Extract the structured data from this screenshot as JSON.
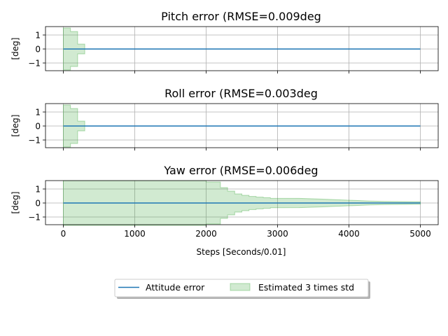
{
  "chart_data": [
    {
      "type": "line",
      "title": "Pitch error (RMSE=0.009deg",
      "ylabel": "[deg]",
      "xlabel": "",
      "xlim": [
        -250,
        5250
      ],
      "ylim": [
        -1.55,
        1.6
      ],
      "xticks": [
        0,
        1000,
        2000,
        3000,
        4000,
        5000
      ],
      "yticks": [
        -1,
        0,
        1
      ],
      "grid": true,
      "series": [
        {
          "name": "Attitude error",
          "x": [
            0,
            5000
          ],
          "y": [
            0.0,
            0.0
          ]
        }
      ],
      "band": {
        "name": "Estimated 3 times std",
        "x": [
          0,
          100,
          100,
          200,
          200,
          300
        ],
        "y": [
          1.5,
          1.5,
          1.25,
          1.25,
          0.35,
          0.35
        ]
      }
    },
    {
      "type": "line",
      "title": "Roll error (RMSE=0.003deg",
      "ylabel": "[deg]",
      "xlabel": "",
      "xlim": [
        -250,
        5250
      ],
      "ylim": [
        -1.55,
        1.6
      ],
      "xticks": [
        0,
        1000,
        2000,
        3000,
        4000,
        5000
      ],
      "yticks": [
        -1,
        0,
        1
      ],
      "grid": true,
      "series": [
        {
          "name": "Attitude error",
          "x": [
            0,
            5000
          ],
          "y": [
            0.0,
            0.0
          ]
        }
      ],
      "band": {
        "name": "Estimated 3 times std",
        "x": [
          0,
          100,
          100,
          200,
          200,
          300
        ],
        "y": [
          1.5,
          1.5,
          1.25,
          1.25,
          0.35,
          0.35
        ]
      }
    },
    {
      "type": "line",
      "title": "Yaw error (RMSE=0.006deg",
      "ylabel": "[deg]",
      "xlabel": "Steps [Seconds/0.01]",
      "xlim": [
        -250,
        5250
      ],
      "ylim": [
        -1.55,
        1.6
      ],
      "xticks": [
        0,
        1000,
        2000,
        3000,
        4000,
        5000
      ],
      "yticks": [
        -1,
        0,
        1
      ],
      "grid": true,
      "series": [
        {
          "name": "Attitude error",
          "x": [
            0,
            5000
          ],
          "y": [
            0.0,
            0.0
          ]
        }
      ],
      "band": {
        "name": "Estimated 3 times std",
        "x": [
          0,
          2000,
          2000,
          2200,
          2200,
          2300,
          2300,
          2400,
          2400,
          2500,
          2500,
          2600,
          2600,
          2700,
          2700,
          2800,
          2800,
          2900,
          2900,
          3300,
          3500,
          3700,
          3900,
          4100,
          4300,
          4500,
          5000
        ],
        "y": [
          1.6,
          1.6,
          1.5,
          1.5,
          1.1,
          1.1,
          0.85,
          0.85,
          0.65,
          0.65,
          0.55,
          0.55,
          0.47,
          0.47,
          0.42,
          0.42,
          0.38,
          0.38,
          0.34,
          0.33,
          0.3,
          0.26,
          0.22,
          0.18,
          0.14,
          0.11,
          0.09
        ]
      }
    }
  ],
  "legend": {
    "position": "bottom-center",
    "items": [
      {
        "label": "Attitude error",
        "kind": "line",
        "color": "#1f77b4"
      },
      {
        "label": "Estimated 3 times std",
        "kind": "patch",
        "color": "#2ca02c"
      }
    ]
  },
  "colors": {
    "line": "#1f77b4",
    "band_fill": "#2ca02c",
    "grid": "#b0b0b0"
  }
}
